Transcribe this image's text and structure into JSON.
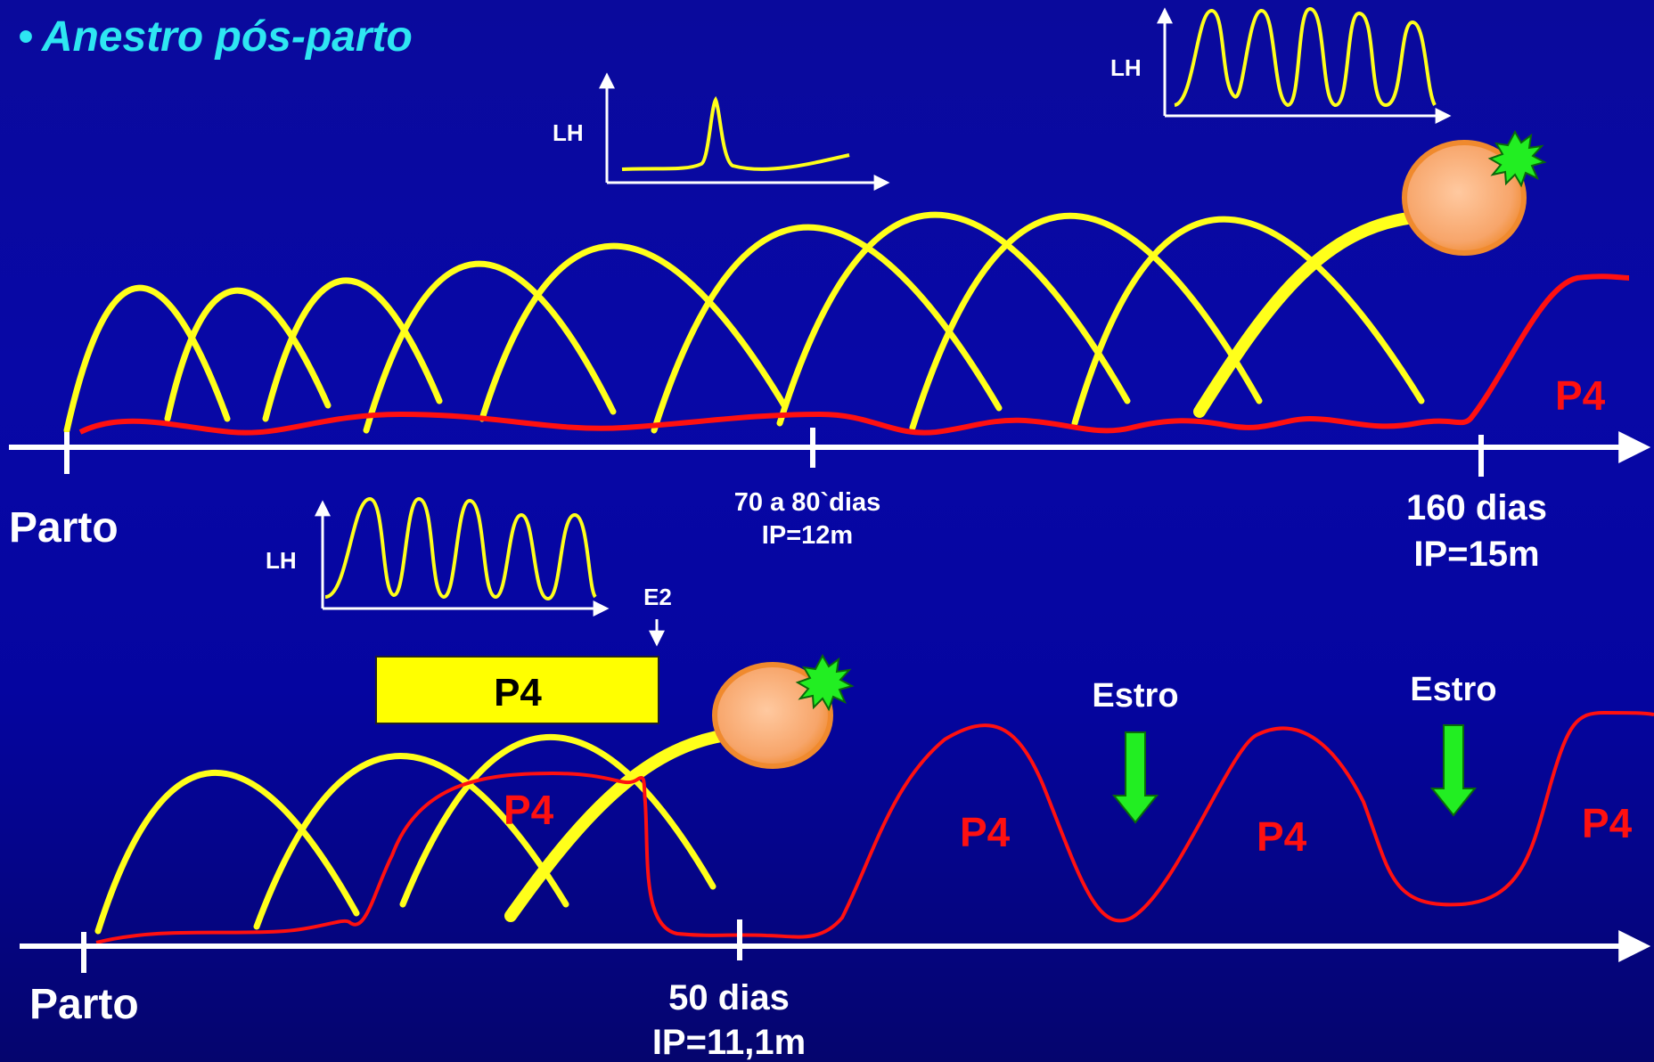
{
  "title": "Anestro pós-parto",
  "colors": {
    "background": "#0a0aa0",
    "follicle_wave": "#ffff1a",
    "progesterone": "#ff1010",
    "axis": "#ffffff",
    "title": "#2ee6f2",
    "ovulation_star": "#22ee22",
    "follicle": "#f59a52",
    "estro_arrow": "#22ee22",
    "p4_box": "#ffff00"
  },
  "icons": [
    "ovulating-follicle-icon",
    "rupture-star-icon",
    "down-arrow-icon"
  ],
  "top_panel": {
    "lh_label_single_peak": "LH",
    "lh_label_pulses": "LH",
    "p4_label": "P4",
    "axis_start_label": "Parto",
    "tick_1": {
      "line1": "70 a 80`dias",
      "line2": "IP=12m"
    },
    "tick_2": {
      "line1": "160 dias",
      "line2": "IP=15m"
    }
  },
  "bottom_panel": {
    "lh_label": "LH",
    "e2_label": "E2",
    "p4_box_label": "P4",
    "p4_labels": [
      "P4",
      "P4",
      "P4",
      "P4"
    ],
    "estro_labels": [
      "Estro",
      "Estro"
    ],
    "axis_start_label": "Parto",
    "tick_1": {
      "line1": "50 dias",
      "line2": "IP=11,1m"
    }
  }
}
